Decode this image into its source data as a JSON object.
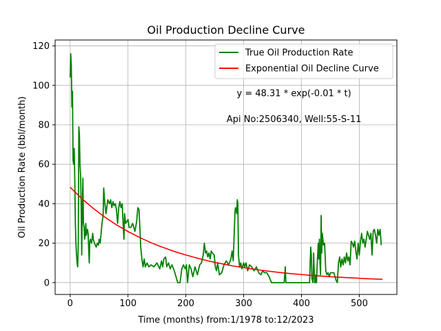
{
  "chart_data": {
    "type": "line",
    "title": "Oil Production Decline Curve",
    "xlabel": "Time (months) from:1/1978 to:12/2023",
    "ylabel": "Oil Production Rate (bbl/month)",
    "xlim": [
      -26,
      565
    ],
    "ylim": [
      -6,
      123
    ],
    "xticks": [
      0,
      100,
      200,
      300,
      400,
      500
    ],
    "yticks": [
      0,
      20,
      40,
      60,
      80,
      100,
      120
    ],
    "grid": true,
    "legend_position": "top-right",
    "annotations": [
      {
        "text": "y = 48.31 * exp(-0.01 * t)",
        "x": 387,
        "y": 96
      },
      {
        "text": "Api No:2506340, Well:55-S-11",
        "x": 387,
        "y": 83
      }
    ],
    "series": [
      {
        "name": "True Oil Production Rate",
        "color": "#008000",
        "points": [
          [
            0,
            104
          ],
          [
            1,
            116
          ],
          [
            2,
            110
          ],
          [
            3,
            89
          ],
          [
            4,
            97
          ],
          [
            5,
            62
          ],
          [
            6,
            60
          ],
          [
            7,
            68
          ],
          [
            8,
            52
          ],
          [
            9,
            30
          ],
          [
            10,
            20
          ],
          [
            11,
            14
          ],
          [
            12,
            10
          ],
          [
            13,
            8
          ],
          [
            14,
            18
          ],
          [
            15,
            79
          ],
          [
            16,
            75
          ],
          [
            17,
            60
          ],
          [
            18,
            55
          ],
          [
            19,
            40
          ],
          [
            20,
            14
          ],
          [
            21,
            38
          ],
          [
            22,
            53
          ],
          [
            23,
            30
          ],
          [
            24,
            28
          ],
          [
            25,
            22
          ],
          [
            26,
            24
          ],
          [
            27,
            30
          ],
          [
            28,
            24
          ],
          [
            29,
            26
          ],
          [
            30,
            27
          ],
          [
            31,
            25
          ],
          [
            32,
            17
          ],
          [
            33,
            10
          ],
          [
            34,
            21
          ],
          [
            35,
            22
          ],
          [
            37,
            20
          ],
          [
            39,
            25
          ],
          [
            40,
            22
          ],
          [
            42,
            20
          ],
          [
            45,
            18
          ],
          [
            47,
            20
          ],
          [
            49,
            19
          ],
          [
            50,
            22
          ],
          [
            52,
            20
          ],
          [
            55,
            30
          ],
          [
            57,
            34
          ],
          [
            58,
            48
          ],
          [
            60,
            40
          ],
          [
            62,
            35
          ],
          [
            65,
            42
          ],
          [
            68,
            40
          ],
          [
            70,
            42
          ],
          [
            72,
            38
          ],
          [
            74,
            41
          ],
          [
            76,
            39
          ],
          [
            78,
            40
          ],
          [
            80,
            37
          ],
          [
            82,
            30
          ],
          [
            84,
            38
          ],
          [
            86,
            41
          ],
          [
            88,
            38
          ],
          [
            90,
            40
          ],
          [
            91,
            33
          ],
          [
            93,
            22
          ],
          [
            94,
            35
          ],
          [
            96,
            30
          ],
          [
            98,
            31
          ],
          [
            100,
            32
          ],
          [
            102,
            28
          ],
          [
            105,
            28
          ],
          [
            108,
            30
          ],
          [
            112,
            26
          ],
          [
            115,
            31
          ],
          [
            117,
            38
          ],
          [
            119,
            37
          ],
          [
            121,
            25
          ],
          [
            122,
            18
          ],
          [
            124,
            12
          ],
          [
            126,
            8
          ],
          [
            128,
            12
          ],
          [
            130,
            8
          ],
          [
            133,
            10
          ],
          [
            136,
            8
          ],
          [
            140,
            9
          ],
          [
            145,
            8
          ],
          [
            150,
            10
          ],
          [
            155,
            7
          ],
          [
            158,
            11
          ],
          [
            160,
            8
          ],
          [
            162,
            12
          ],
          [
            165,
            13
          ],
          [
            167,
            8
          ],
          [
            170,
            10
          ],
          [
            173,
            7
          ],
          [
            176,
            9
          ],
          [
            180,
            6
          ],
          [
            183,
            3
          ],
          [
            186,
            0
          ],
          [
            190,
            0
          ],
          [
            193,
            7
          ],
          [
            196,
            9
          ],
          [
            199,
            7
          ],
          [
            201,
            9
          ],
          [
            203,
            0
          ],
          [
            206,
            9
          ],
          [
            209,
            7
          ],
          [
            212,
            3
          ],
          [
            216,
            8
          ],
          [
            220,
            4
          ],
          [
            224,
            9
          ],
          [
            227,
            10
          ],
          [
            230,
            14
          ],
          [
            232,
            20
          ],
          [
            234,
            15
          ],
          [
            236,
            16
          ],
          [
            238,
            13
          ],
          [
            240,
            15
          ],
          [
            242,
            12
          ],
          [
            244,
            16
          ],
          [
            246,
            15
          ],
          [
            249,
            14
          ],
          [
            251,
            8
          ],
          [
            253,
            6
          ],
          [
            255,
            10
          ],
          [
            258,
            4
          ],
          [
            262,
            5
          ],
          [
            266,
            9
          ],
          [
            270,
            11
          ],
          [
            274,
            9
          ],
          [
            278,
            12
          ],
          [
            280,
            16
          ],
          [
            282,
            11
          ],
          [
            284,
            28
          ],
          [
            285,
            36
          ],
          [
            286,
            38
          ],
          [
            288,
            35
          ],
          [
            289,
            42
          ],
          [
            290,
            40
          ],
          [
            291,
            14
          ],
          [
            293,
            8
          ],
          [
            295,
            10
          ],
          [
            297,
            7
          ],
          [
            300,
            10
          ],
          [
            302,
            8
          ],
          [
            304,
            10
          ],
          [
            307,
            6
          ],
          [
            310,
            9
          ],
          [
            314,
            8
          ],
          [
            318,
            6
          ],
          [
            322,
            8
          ],
          [
            326,
            5
          ],
          [
            330,
            4
          ],
          [
            333,
            6
          ],
          [
            336,
            5
          ],
          [
            340,
            5
          ],
          [
            344,
            3
          ],
          [
            348,
            0
          ],
          [
            352,
            0
          ],
          [
            356,
            0
          ],
          [
            360,
            0
          ],
          [
            365,
            0
          ],
          [
            370,
            0
          ],
          [
            372,
            8
          ],
          [
            373,
            0
          ],
          [
            378,
            0
          ],
          [
            383,
            0
          ],
          [
            388,
            0
          ],
          [
            393,
            0
          ],
          [
            398,
            0
          ],
          [
            403,
            0
          ],
          [
            408,
            0
          ],
          [
            412,
            0
          ],
          [
            414,
            0
          ],
          [
            415,
            10
          ],
          [
            416,
            18
          ],
          [
            417,
            14
          ],
          [
            418,
            2
          ],
          [
            420,
            0
          ],
          [
            421,
            15
          ],
          [
            422,
            6
          ],
          [
            423,
            0
          ],
          [
            424,
            0
          ],
          [
            425,
            4
          ],
          [
            426,
            0
          ],
          [
            427,
            8
          ],
          [
            428,
            14
          ],
          [
            429,
            20
          ],
          [
            430,
            12
          ],
          [
            431,
            22
          ],
          [
            432,
            10
          ],
          [
            433,
            4
          ],
          [
            434,
            34
          ],
          [
            435,
            15
          ],
          [
            436,
            25
          ],
          [
            438,
            19
          ],
          [
            440,
            20
          ],
          [
            442,
            6
          ],
          [
            444,
            4
          ],
          [
            446,
            5
          ],
          [
            448,
            3
          ],
          [
            450,
            5
          ],
          [
            453,
            5
          ],
          [
            456,
            5
          ],
          [
            460,
            1
          ],
          [
            462,
            0
          ],
          [
            464,
            10
          ],
          [
            466,
            13
          ],
          [
            468,
            8
          ],
          [
            470,
            12
          ],
          [
            472,
            9
          ],
          [
            474,
            13
          ],
          [
            476,
            10
          ],
          [
            478,
            15
          ],
          [
            480,
            11
          ],
          [
            482,
            13
          ],
          [
            484,
            9
          ],
          [
            486,
            21
          ],
          [
            488,
            20
          ],
          [
            490,
            18
          ],
          [
            492,
            21
          ],
          [
            494,
            16
          ],
          [
            496,
            12
          ],
          [
            498,
            20
          ],
          [
            500,
            14
          ],
          [
            502,
            21
          ],
          [
            504,
            25
          ],
          [
            506,
            20
          ],
          [
            508,
            22
          ],
          [
            510,
            18
          ],
          [
            512,
            22
          ],
          [
            514,
            26
          ],
          [
            516,
            24
          ],
          [
            518,
            22
          ],
          [
            520,
            25
          ],
          [
            522,
            14
          ],
          [
            524,
            26
          ],
          [
            526,
            27
          ],
          [
            528,
            24
          ],
          [
            530,
            20
          ],
          [
            532,
            27
          ],
          [
            534,
            24
          ],
          [
            536,
            27
          ],
          [
            538,
            19
          ]
        ]
      },
      {
        "name": "Exponential Oil Decline Curve",
        "color": "#ff0000",
        "model": {
          "a": 48.31,
          "b": -0.00623
        },
        "points": [
          [
            0,
            48.31
          ],
          [
            20,
            42.6
          ],
          [
            40,
            37.6
          ],
          [
            60,
            33.2
          ],
          [
            80,
            29.3
          ],
          [
            100,
            25.9
          ],
          [
            120,
            22.9
          ],
          [
            140,
            20.2
          ],
          [
            160,
            17.9
          ],
          [
            180,
            15.8
          ],
          [
            200,
            14.0
          ],
          [
            220,
            12.4
          ],
          [
            240,
            10.9
          ],
          [
            260,
            9.7
          ],
          [
            280,
            8.5
          ],
          [
            300,
            7.6
          ],
          [
            320,
            6.7
          ],
          [
            340,
            5.9
          ],
          [
            360,
            5.2
          ],
          [
            380,
            4.6
          ],
          [
            400,
            4.1
          ],
          [
            420,
            3.6
          ],
          [
            440,
            3.2
          ],
          [
            460,
            2.8
          ],
          [
            480,
            2.5
          ],
          [
            500,
            2.2
          ],
          [
            520,
            1.9
          ],
          [
            540,
            1.7
          ]
        ]
      }
    ]
  }
}
